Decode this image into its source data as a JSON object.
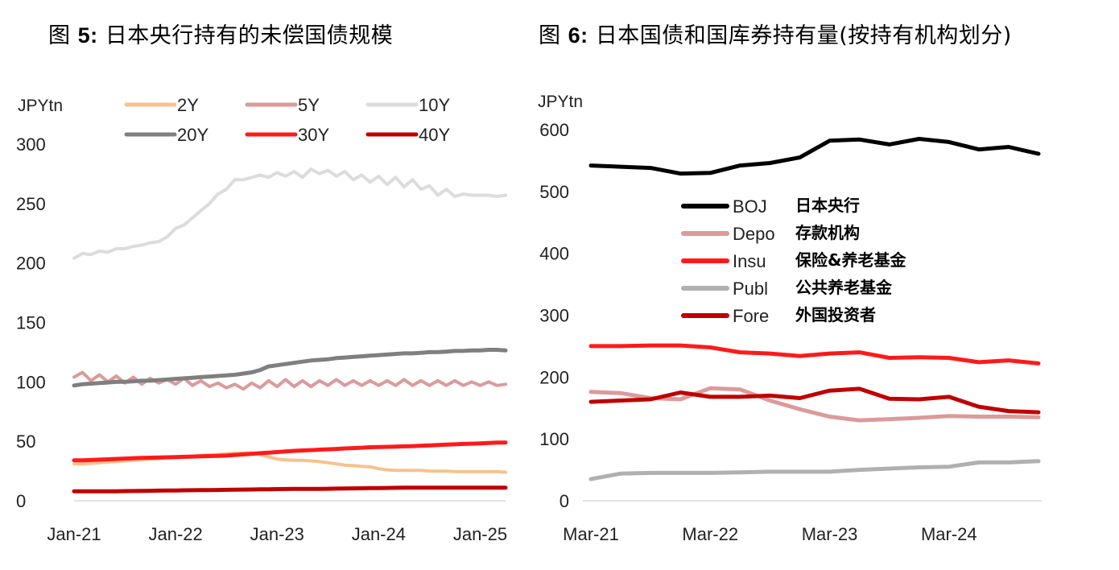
{
  "charts_header": {
    "left_title_prefix": "图 ",
    "left_title_num": "5:",
    "left_title_text": " 日本央行持有的未偿国债规模",
    "right_title_prefix": "图 ",
    "right_title_num": "6:",
    "right_title_text": " 日本国债和国库券持有量(按持有机构划分)"
  },
  "chart_data": [
    {
      "type": "line",
      "title": "图 5: 日本央行持有的未偿国债规模",
      "ylabel": "JPYtn",
      "ylim": [
        0,
        300
      ],
      "yticks": [
        "300",
        "250",
        "200",
        "150",
        "100",
        "50",
        "0"
      ],
      "xlim": [
        0,
        51
      ],
      "xticks": [
        {
          "label": "Jan-21",
          "x": 0
        },
        {
          "label": "Jan-22",
          "x": 12
        },
        {
          "label": "Jan-23",
          "x": 24
        },
        {
          "label": "Jan-24",
          "x": 36
        },
        {
          "label": "Jan-25",
          "x": 48
        }
      ],
      "legend_position": "top",
      "series": [
        {
          "name": "2Y",
          "color": "#f7c28d",
          "values": [
            31,
            31,
            31.5,
            32,
            32.5,
            33,
            33.5,
            34,
            34.5,
            35,
            35.5,
            36,
            36.5,
            37,
            37.5,
            38,
            38.5,
            39,
            39.5,
            40,
            40,
            40.5,
            39,
            37,
            35,
            34.5,
            34,
            34,
            33.5,
            33,
            32,
            31,
            30,
            29.5,
            29,
            28.5,
            27,
            26,
            25.5,
            25.5,
            25.5,
            25.5,
            25,
            25,
            25,
            24.5,
            24.5,
            24.5,
            24.5,
            24.5,
            24.5,
            24
          ]
        },
        {
          "name": "5Y",
          "color": "#dc9a9a",
          "values": [
            104,
            108,
            101,
            106,
            100,
            105,
            99,
            104,
            98,
            103,
            99,
            102,
            98,
            103,
            97,
            101,
            96,
            99,
            95,
            98,
            94,
            99,
            95,
            101,
            96,
            102,
            96,
            101,
            96,
            101,
            97,
            102,
            97,
            101,
            97,
            101,
            97,
            101,
            97,
            102,
            97,
            101,
            97,
            101,
            97,
            101,
            97,
            100,
            97,
            100,
            97,
            98
          ]
        },
        {
          "name": "10Y",
          "color": "#dcdcdc",
          "values": [
            204,
            208,
            207,
            210,
            209,
            212,
            212,
            214,
            215,
            217,
            218,
            222,
            229,
            232,
            238,
            244,
            250,
            258,
            262,
            270,
            270,
            272,
            274,
            272,
            276,
            273,
            277,
            272,
            279,
            275,
            278,
            273,
            277,
            270,
            274,
            268,
            273,
            266,
            272,
            264,
            270,
            262,
            265,
            257,
            262,
            256,
            258,
            257,
            257,
            257,
            256,
            257
          ]
        },
        {
          "name": "20Y",
          "color": "#7f7f7f",
          "values": [
            97,
            98,
            98.5,
            99,
            99.5,
            100,
            100,
            100.5,
            101,
            101,
            101.5,
            102,
            102.5,
            103,
            103.5,
            104,
            104.5,
            105,
            105.5,
            106,
            107,
            108,
            110,
            113,
            114,
            115,
            116,
            117,
            118,
            118.5,
            119,
            120,
            120.5,
            121,
            121.5,
            122,
            122.5,
            123,
            123.5,
            124,
            124,
            124.5,
            125,
            125,
            125.5,
            126,
            126,
            126.5,
            126.5,
            127,
            127,
            126.5
          ]
        },
        {
          "name": "30Y",
          "color": "#ff1a1a",
          "values": [
            34,
            34,
            34.3,
            34.6,
            34.9,
            35.2,
            35.5,
            35.8,
            36,
            36.2,
            36.4,
            36.6,
            36.8,
            37,
            37.2,
            37.4,
            37.6,
            37.8,
            38,
            38.5,
            39,
            39.5,
            40,
            40.5,
            41,
            41.5,
            42,
            42.3,
            42.6,
            43,
            43.3,
            43.6,
            44,
            44.3,
            44.6,
            45,
            45.2,
            45.4,
            45.6,
            45.8,
            46,
            46.3,
            46.6,
            46.9,
            47.2,
            47.5,
            47.8,
            48,
            48.3,
            48.6,
            48.9,
            49
          ]
        },
        {
          "name": "40Y",
          "color": "#c00000",
          "values": [
            8,
            8,
            8,
            8,
            8,
            8,
            8.1,
            8.2,
            8.3,
            8.4,
            8.5,
            8.6,
            8.7,
            8.8,
            8.9,
            9,
            9,
            9.1,
            9.2,
            9.3,
            9.4,
            9.5,
            9.6,
            9.7,
            9.8,
            9.9,
            10,
            10,
            10,
            10,
            10.1,
            10.2,
            10.3,
            10.4,
            10.5,
            10.6,
            10.7,
            10.8,
            10.9,
            11,
            11,
            11,
            11,
            11,
            11,
            11,
            11,
            11,
            11,
            11,
            11,
            11
          ]
        }
      ]
    },
    {
      "type": "line",
      "title": "图 6: 日本国债和国库券持有量(按持有机构划分)",
      "ylabel": "JPYtn",
      "ylim": [
        0,
        600
      ],
      "yticks": [
        "600",
        "500",
        "400",
        "300",
        "200",
        "100",
        "0"
      ],
      "xlim": [
        0,
        15
      ],
      "xticks": [
        {
          "label": "Mar-21",
          "x": 0
        },
        {
          "label": "Mar-22",
          "x": 4
        },
        {
          "label": "Mar-23",
          "x": 8
        },
        {
          "label": "Mar-24",
          "x": 12
        }
      ],
      "legend_position": "middle",
      "series": [
        {
          "name": "BOJ",
          "name_cn": "日本央行",
          "color": "#000000",
          "values": [
            542,
            540,
            538,
            529,
            530,
            542,
            546,
            555,
            582,
            584,
            576,
            585,
            580,
            568,
            572,
            561
          ]
        },
        {
          "name": "Depo",
          "name_cn": "存款机构",
          "color": "#dc9a9a",
          "values": [
            176,
            174,
            166,
            164,
            182,
            180,
            162,
            148,
            136,
            130,
            132,
            134,
            137,
            136,
            136,
            135
          ]
        },
        {
          "name": "Insu",
          "name_cn": "保险&养老基金",
          "color": "#ff1a1a",
          "values": [
            250,
            250,
            251,
            251,
            248,
            240,
            238,
            234,
            238,
            240,
            231,
            232,
            231,
            224,
            227,
            222
          ]
        },
        {
          "name": "Publ",
          "name_cn": "公共养老基金",
          "color": "#b0b0b0",
          "values": [
            35,
            44,
            45,
            45,
            45,
            46,
            47,
            47,
            47,
            50,
            52,
            54,
            55,
            62,
            62,
            64
          ]
        },
        {
          "name": "Fore",
          "name_cn": "外国投资者",
          "color": "#c00000",
          "values": [
            160,
            162,
            164,
            175,
            168,
            168,
            170,
            166,
            178,
            181,
            165,
            164,
            168,
            152,
            145,
            143
          ]
        }
      ]
    }
  ]
}
